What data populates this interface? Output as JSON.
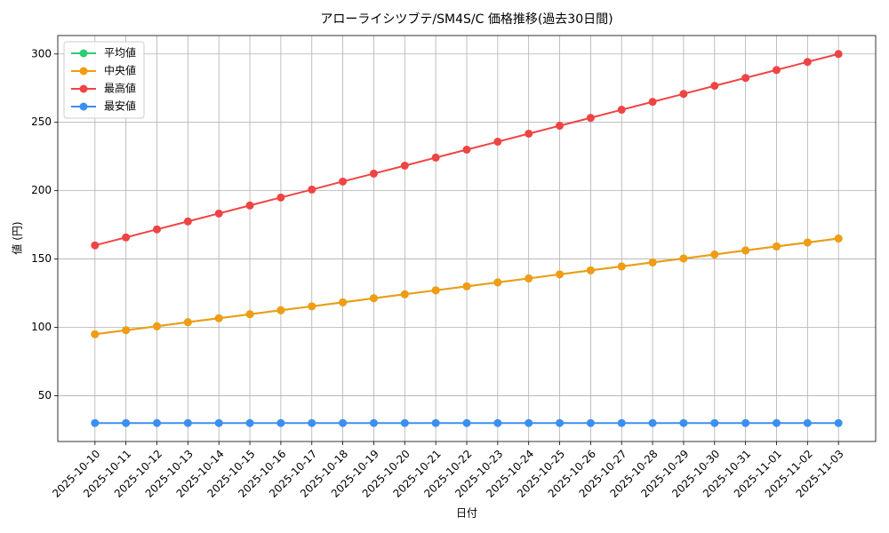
{
  "chart_data": {
    "type": "line",
    "title": "アローライシツブテ/SM4S/C 価格推移(過去30日間)",
    "x_label": "日付",
    "y_label": "値 (円)",
    "x": [
      "2025-10-10",
      "2025-10-11",
      "2025-10-12",
      "2025-10-13",
      "2025-10-14",
      "2025-10-15",
      "2025-10-16",
      "2025-10-17",
      "2025-10-18",
      "2025-10-19",
      "2025-10-20",
      "2025-10-21",
      "2025-10-22",
      "2025-10-23",
      "2025-10-24",
      "2025-10-25",
      "2025-10-26",
      "2025-10-27",
      "2025-10-28",
      "2025-10-29",
      "2025-10-30",
      "2025-10-31",
      "2025-11-01",
      "2025-11-02",
      "2025-11-03"
    ],
    "series": [
      {
        "name": "平均値",
        "color": "#2ecc71",
        "values": [
          95,
          97.9,
          100.8,
          103.8,
          106.7,
          109.6,
          112.5,
          115.4,
          118.3,
          121.3,
          124.2,
          127.1,
          130,
          132.9,
          135.8,
          138.8,
          141.7,
          144.6,
          147.5,
          150.4,
          153.3,
          156.3,
          159.2,
          162.1,
          165
        ]
      },
      {
        "name": "中央値",
        "color": "#f39c12",
        "values": [
          95,
          97.9,
          100.8,
          103.8,
          106.7,
          109.6,
          112.5,
          115.4,
          118.3,
          121.3,
          124.2,
          127.1,
          130,
          132.9,
          135.8,
          138.8,
          141.7,
          144.6,
          147.5,
          150.4,
          153.3,
          156.3,
          159.2,
          162.1,
          165
        ]
      },
      {
        "name": "最高値",
        "color": "#ef4444",
        "values": [
          160,
          165.8,
          171.7,
          177.5,
          183.3,
          189.2,
          195,
          200.8,
          206.7,
          212.5,
          218.3,
          224.2,
          230,
          235.8,
          241.7,
          247.5,
          253.3,
          259.2,
          265,
          270.8,
          276.7,
          282.5,
          288.3,
          294.2,
          300
        ]
      },
      {
        "name": "最安値",
        "color": "#3b8ff0",
        "values": [
          30,
          30,
          30,
          30,
          30,
          30,
          30,
          30,
          30,
          30,
          30,
          30,
          30,
          30,
          30,
          30,
          30,
          30,
          30,
          30,
          30,
          30,
          30,
          30,
          30
        ]
      }
    ],
    "ylim": [
      16.5,
      313.5
    ],
    "yticks": [
      50,
      100,
      150,
      200,
      250,
      300
    ],
    "grid": true,
    "legend": "upper-left"
  }
}
